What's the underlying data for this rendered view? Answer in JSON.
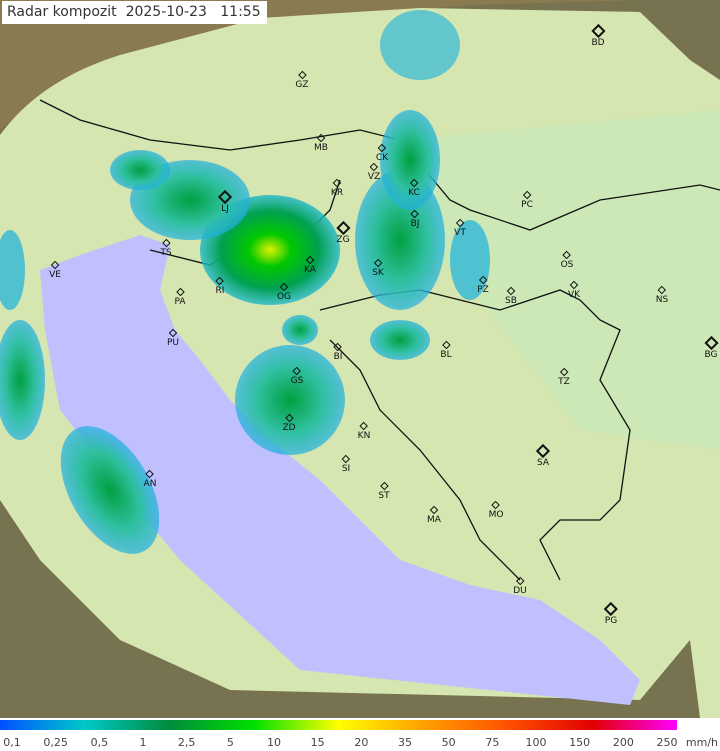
{
  "title": "Radar kompozit  2025-10-23   11:55",
  "cities": [
    {
      "code": "BD",
      "capital": true
    },
    {
      "code": "GZ",
      "capital": false
    },
    {
      "code": "MB",
      "capital": false
    },
    {
      "code": "CK",
      "capital": false
    },
    {
      "code": "VZ",
      "capital": false
    },
    {
      "code": "KR",
      "capital": false
    },
    {
      "code": "KC",
      "capital": false
    },
    {
      "code": "PC",
      "capital": false
    },
    {
      "code": "LJ",
      "capital": true
    },
    {
      "code": "BJ",
      "capital": false
    },
    {
      "code": "ZG",
      "capital": true
    },
    {
      "code": "VT",
      "capital": false
    },
    {
      "code": "TS",
      "capital": false
    },
    {
      "code": "VE",
      "capital": false
    },
    {
      "code": "RI",
      "capital": false
    },
    {
      "code": "KA",
      "capital": false
    },
    {
      "code": "SK",
      "capital": false
    },
    {
      "code": "OS",
      "capital": false
    },
    {
      "code": "PZ",
      "capital": false
    },
    {
      "code": "SB",
      "capital": false
    },
    {
      "code": "VK",
      "capital": false
    },
    {
      "code": "NS",
      "capital": false
    },
    {
      "code": "PA",
      "capital": false
    },
    {
      "code": "OG",
      "capital": false
    },
    {
      "code": "PU",
      "capital": false
    },
    {
      "code": "BI",
      "capital": false
    },
    {
      "code": "BL",
      "capital": false
    },
    {
      "code": "BG",
      "capital": true
    },
    {
      "code": "GS",
      "capital": false
    },
    {
      "code": "TZ",
      "capital": false
    },
    {
      "code": "ZD",
      "capital": false
    },
    {
      "code": "KN",
      "capital": false
    },
    {
      "code": "AN",
      "capital": false
    },
    {
      "code": "SI",
      "capital": false
    },
    {
      "code": "SA",
      "capital": true
    },
    {
      "code": "ST",
      "capital": false
    },
    {
      "code": "MA",
      "capital": false
    },
    {
      "code": "MO",
      "capital": false
    },
    {
      "code": "DU",
      "capital": false
    },
    {
      "code": "PG",
      "capital": true
    }
  ],
  "legend": {
    "ticks": [
      "0,1",
      "0,25",
      "0,5",
      "1",
      "2,5",
      "5",
      "10",
      "15",
      "20",
      "35",
      "50",
      "75",
      "100",
      "150",
      "200",
      "250"
    ],
    "unit": "mm/h",
    "colors": [
      "#0050ff",
      "#00c8c8",
      "#008c3c",
      "#00e000",
      "#ffff00",
      "#ffa000",
      "#ff5000",
      "#e00000",
      "#ff00ff"
    ]
  },
  "colors": {
    "sea": "#c0c0ff",
    "land": "#d6e6b0",
    "outside": "#8a7a50"
  }
}
